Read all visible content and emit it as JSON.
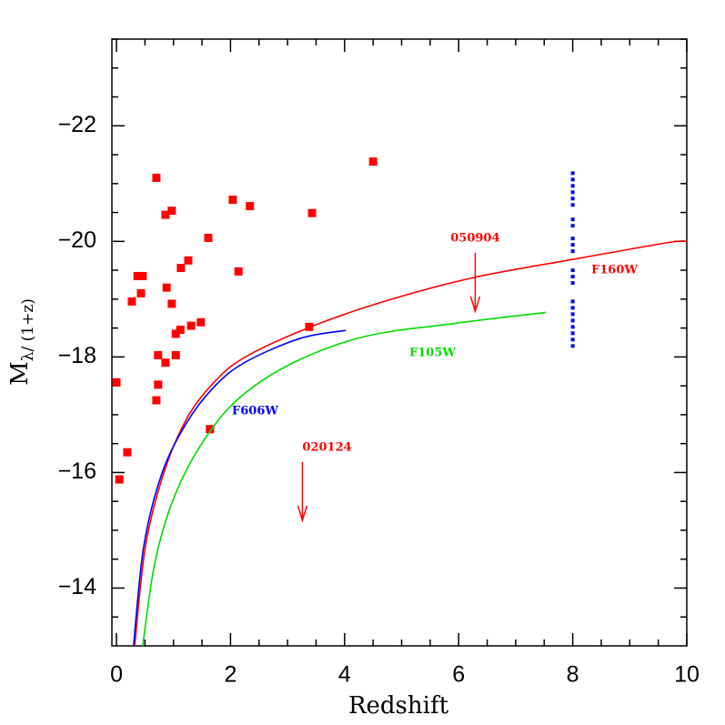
{
  "chart_data": {
    "type": "scatter",
    "xlabel": "Redshift",
    "ylabel": "M",
    "ylabel_sub": "λ/ (1+z)",
    "xlim": [
      -0.08,
      10
    ],
    "ylim": [
      -13,
      -23.5
    ],
    "xticks": [
      0,
      2,
      4,
      6,
      8,
      10
    ],
    "yticks": [
      {
        "value": -22,
        "label": "−22"
      },
      {
        "value": -20,
        "label": "−20"
      },
      {
        "value": -18,
        "label": "−18"
      },
      {
        "value": -16,
        "label": "−16"
      },
      {
        "value": -14,
        "label": "−14"
      }
    ],
    "xminorticks": [
      0.5,
      1,
      1.5,
      2.5,
      3,
      3.5,
      4.5,
      5,
      5.5,
      6.5,
      7,
      7.5,
      8.5,
      9,
      9.5
    ],
    "yminorticks": [
      -23.5,
      -23,
      -22.5,
      -21.5,
      -21,
      -20.5,
      -19.5,
      -19,
      -18.5,
      -17.5,
      -17,
      -16.5,
      -15.5,
      -15,
      -14.5,
      -13.5
    ],
    "series": [
      {
        "type": "scatter",
        "color": "#ff0000",
        "x": [
          0,
          0.05,
          0.19,
          0.27,
          0.37,
          0.46,
          0.43,
          0.7,
          0.73,
          0.73,
          0.7,
          0.86,
          0.88,
          0.86,
          0.97,
          0.97,
          1.04,
          1.04,
          1.12,
          1.13,
          1.26,
          1.31,
          1.48,
          1.61,
          1.64,
          2.04,
          2.14,
          2.34,
          3.43,
          3.38,
          4.5
        ],
        "values": [
          -17.56,
          -15.88,
          -16.35,
          -18.96,
          -19.4,
          -19.4,
          -19.1,
          -21.1,
          -18.03,
          -17.52,
          -17.25,
          -17.9,
          -19.2,
          -20.46,
          -20.53,
          -18.92,
          -18.03,
          -18.4,
          -18.47,
          -19.54,
          -19.67,
          -18.54,
          -18.6,
          -20.06,
          -16.75,
          -20.72,
          -19.48,
          -20.61,
          -20.49,
          -18.52,
          -21.38
        ]
      },
      {
        "type": "dots",
        "color": "#0000ff",
        "x": [
          8,
          8,
          8,
          8,
          8,
          8,
          8,
          8,
          8,
          8,
          8,
          8,
          8,
          8,
          8,
          8,
          8,
          8,
          8,
          8,
          8,
          8
        ],
        "values": [
          -21.18,
          -21.07,
          -20.96,
          -20.85,
          -20.74,
          -20.63,
          -20.38,
          -20.27,
          -20.05,
          -19.94,
          -19.83,
          -19.5,
          -19.39,
          -19.28,
          -18.96,
          -18.85,
          -18.74,
          -18.63,
          -18.52,
          -18.41,
          -18.3,
          -18.19
        ]
      },
      {
        "type": "line",
        "name": "F160W",
        "color": "#ff0000",
        "x": [
          0.32,
          0.51,
          0.83,
          1.23,
          1.71,
          2.26,
          3.38,
          4.66,
          6.25,
          8.01,
          9.68,
          10
        ],
        "values": [
          -13.0,
          -14.73,
          -15.99,
          -16.93,
          -17.56,
          -18.0,
          -18.51,
          -18.95,
          -19.37,
          -19.69,
          -19.98,
          -20.0
        ]
      },
      {
        "type": "line",
        "name": "F606W",
        "color": "#0000ff",
        "x": [
          0.3,
          0.48,
          0.8,
          1.23,
          1.71,
          2.26,
          3.22,
          4.02
        ],
        "values": [
          -13.0,
          -14.73,
          -15.99,
          -16.86,
          -17.48,
          -17.91,
          -18.32,
          -18.46
        ]
      },
      {
        "type": "line",
        "name": "F105W",
        "color": "#00dd00",
        "x": [
          0.46,
          0.67,
          0.99,
          1.47,
          2.11,
          3.06,
          4.34,
          5.93,
          7.53
        ],
        "values": [
          -13.0,
          -14.42,
          -15.52,
          -16.46,
          -17.25,
          -17.88,
          -18.35,
          -18.58,
          -18.77
        ]
      }
    ],
    "limits": [
      {
        "label": "050904",
        "x": 6.29,
        "y": -19.8,
        "color": "#ff0000"
      },
      {
        "label": "020124",
        "x": 3.26,
        "y": -16.18,
        "color": "#ff0000"
      }
    ]
  }
}
